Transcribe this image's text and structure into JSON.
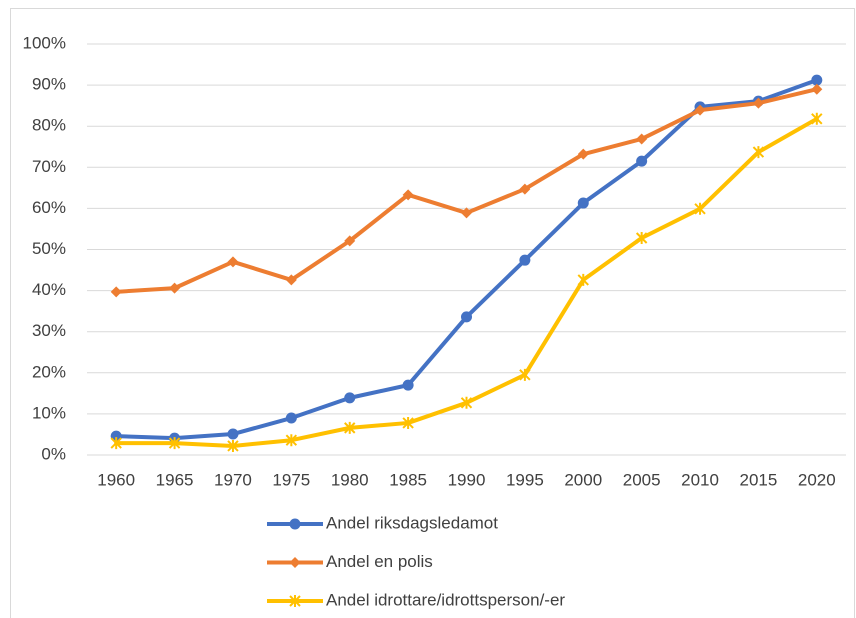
{
  "chart_data": {
    "type": "line",
    "categories": [
      "1960",
      "1965",
      "1970",
      "1975",
      "1980",
      "1985",
      "1990",
      "1995",
      "2000",
      "2005",
      "2010",
      "2015",
      "2020"
    ],
    "series": [
      {
        "name": "Andel riksdagsledamot",
        "color": "#4472c4",
        "marker": "circle",
        "values": [
          4.6,
          4.1,
          5.1,
          9.0,
          13.9,
          17.0,
          33.6,
          47.4,
          61.3,
          71.5,
          84.7,
          86.1,
          91.2
        ]
      },
      {
        "name": "Andel en polis",
        "color": "#ed7d31",
        "marker": "diamond",
        "values": [
          39.7,
          40.6,
          47.0,
          42.6,
          52.1,
          63.3,
          58.9,
          64.7,
          73.2,
          76.9,
          83.9,
          85.6,
          89.0
        ]
      },
      {
        "name": "Andel idrottare/idrottsperson/-er",
        "color": "#ffc000",
        "marker": "star",
        "values": [
          2.9,
          2.9,
          2.2,
          3.6,
          6.6,
          7.8,
          12.7,
          19.5,
          42.6,
          52.8,
          59.9,
          73.7,
          81.8
        ]
      }
    ],
    "ylim": [
      0,
      100
    ],
    "yticks": [
      {
        "value": 0,
        "label": "0%"
      },
      {
        "value": 10,
        "label": "10%"
      },
      {
        "value": 20,
        "label": "20%"
      },
      {
        "value": 30,
        "label": "30%"
      },
      {
        "value": 40,
        "label": "40%"
      },
      {
        "value": 50,
        "label": "50%"
      },
      {
        "value": 60,
        "label": "60%"
      },
      {
        "value": 70,
        "label": "70%"
      },
      {
        "value": 80,
        "label": "80%"
      },
      {
        "value": 90,
        "label": "90%"
      },
      {
        "value": 100,
        "label": "100%"
      }
    ],
    "grid": true,
    "legend": "bottom"
  }
}
